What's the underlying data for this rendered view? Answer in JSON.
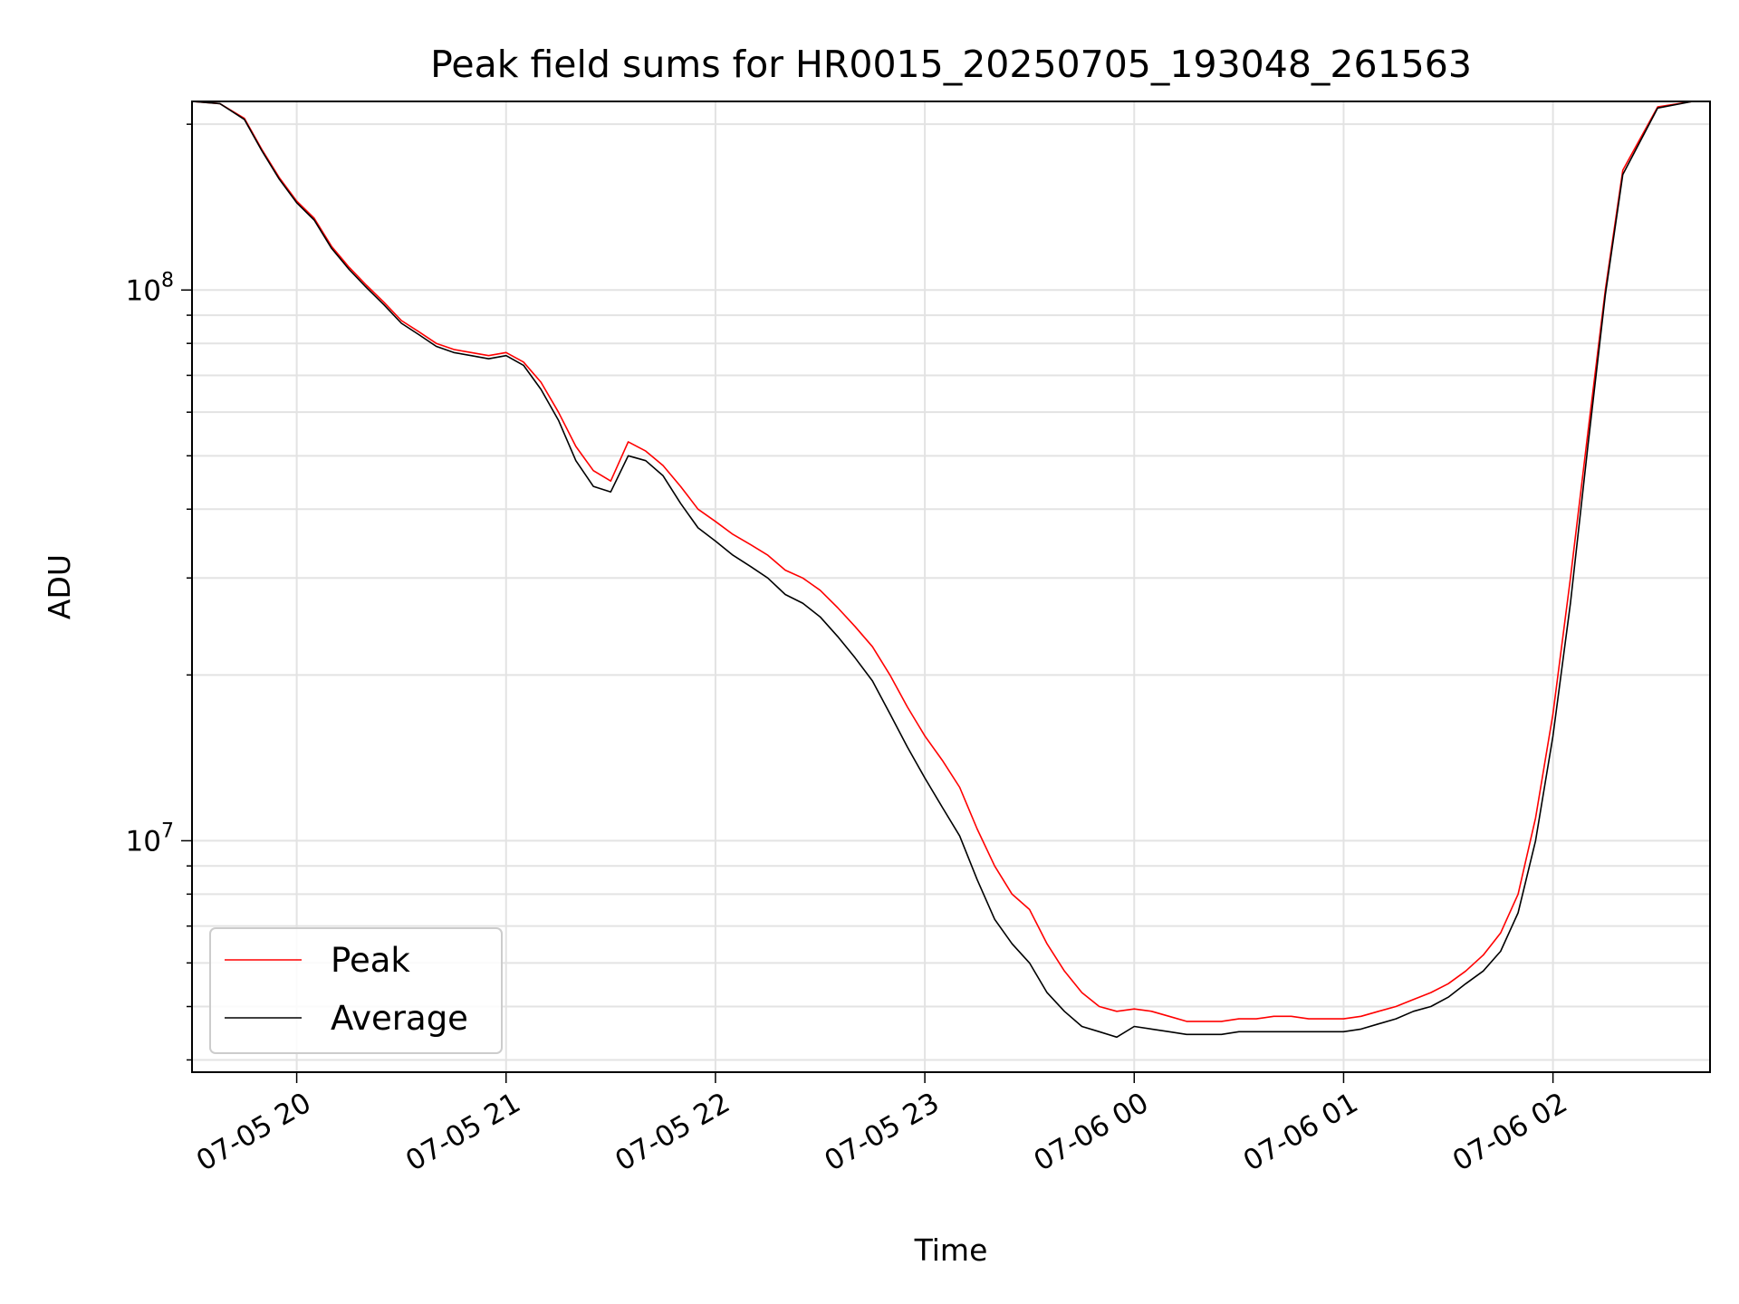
{
  "chart_data": {
    "type": "line",
    "title": "Peak field sums for HR0015_20250705_193048_261563",
    "xlabel": "Time",
    "ylabel": "ADU",
    "yscale": "log",
    "ylim": [
      3800000,
      220000000
    ],
    "xlim": [
      "2025-07-05 19:30",
      "2025-07-06 02:45"
    ],
    "grid": true,
    "legend_position": "lower-left",
    "x_tick_labels": [
      "07-05 20",
      "07-05 21",
      "07-05 22",
      "07-05 23",
      "07-06 00",
      "07-06 01",
      "07-06 02"
    ],
    "x_ticks": [
      "2025-07-05 20:00",
      "2025-07-05 21:00",
      "2025-07-05 22:00",
      "2025-07-05 23:00",
      "2025-07-06 00:00",
      "2025-07-06 01:00",
      "2025-07-06 02:00"
    ],
    "y_tick_labels": [
      {
        "value": 10000000,
        "base": "10",
        "exp": "7"
      },
      {
        "value": 100000000,
        "base": "10",
        "exp": "8"
      }
    ],
    "series": [
      {
        "name": "Peak",
        "color": "#ff0000",
        "x": [
          "2025-07-05 19:30",
          "2025-07-05 19:38",
          "2025-07-05 19:45",
          "2025-07-05 19:50",
          "2025-07-05 19:55",
          "2025-07-05 20:00",
          "2025-07-05 20:05",
          "2025-07-05 20:10",
          "2025-07-05 20:15",
          "2025-07-05 20:20",
          "2025-07-05 20:25",
          "2025-07-05 20:30",
          "2025-07-05 20:35",
          "2025-07-05 20:40",
          "2025-07-05 20:45",
          "2025-07-05 20:50",
          "2025-07-05 20:55",
          "2025-07-05 21:00",
          "2025-07-05 21:05",
          "2025-07-05 21:10",
          "2025-07-05 21:15",
          "2025-07-05 21:20",
          "2025-07-05 21:25",
          "2025-07-05 21:30",
          "2025-07-05 21:35",
          "2025-07-05 21:40",
          "2025-07-05 21:45",
          "2025-07-05 21:50",
          "2025-07-05 21:55",
          "2025-07-05 22:00",
          "2025-07-05 22:05",
          "2025-07-05 22:10",
          "2025-07-05 22:15",
          "2025-07-05 22:20",
          "2025-07-05 22:25",
          "2025-07-05 22:30",
          "2025-07-05 22:35",
          "2025-07-05 22:40",
          "2025-07-05 22:45",
          "2025-07-05 22:50",
          "2025-07-05 22:55",
          "2025-07-05 23:00",
          "2025-07-05 23:05",
          "2025-07-05 23:10",
          "2025-07-05 23:15",
          "2025-07-05 23:20",
          "2025-07-05 23:25",
          "2025-07-05 23:30",
          "2025-07-05 23:35",
          "2025-07-05 23:40",
          "2025-07-05 23:45",
          "2025-07-05 23:50",
          "2025-07-05 23:55",
          "2025-07-06 00:00",
          "2025-07-06 00:05",
          "2025-07-06 00:10",
          "2025-07-06 00:15",
          "2025-07-06 00:20",
          "2025-07-06 00:25",
          "2025-07-06 00:30",
          "2025-07-06 00:35",
          "2025-07-06 00:40",
          "2025-07-06 00:45",
          "2025-07-06 00:50",
          "2025-07-06 00:55",
          "2025-07-06 01:00",
          "2025-07-06 01:05",
          "2025-07-06 01:10",
          "2025-07-06 01:15",
          "2025-07-06 01:20",
          "2025-07-06 01:25",
          "2025-07-06 01:30",
          "2025-07-06 01:35",
          "2025-07-06 01:40",
          "2025-07-06 01:45",
          "2025-07-06 01:50",
          "2025-07-06 01:55",
          "2025-07-06 02:00",
          "2025-07-06 02:05",
          "2025-07-06 02:10",
          "2025-07-06 02:15",
          "2025-07-06 02:20",
          "2025-07-06 02:30",
          "2025-07-06 02:40",
          "2025-07-06 02:45"
        ],
        "values": [
          220000000,
          218000000,
          205000000,
          180000000,
          160000000,
          145000000,
          135000000,
          120000000,
          110000000,
          102000000,
          95000000,
          88000000,
          84000000,
          80000000,
          78000000,
          77000000,
          76000000,
          77000000,
          74000000,
          68000000,
          60000000,
          52000000,
          47000000,
          45000000,
          53000000,
          51000000,
          48000000,
          44000000,
          40000000,
          38000000,
          36000000,
          34500000,
          33000000,
          31000000,
          30000000,
          28500000,
          26500000,
          24500000,
          22500000,
          20000000,
          17500000,
          15500000,
          14000000,
          12500000,
          10500000,
          9000000,
          8000000,
          7500000,
          6500000,
          5800000,
          5300000,
          5000000,
          4900000,
          4950000,
          4900000,
          4800000,
          4700000,
          4700000,
          4700000,
          4750000,
          4750000,
          4800000,
          4800000,
          4750000,
          4750000,
          4750000,
          4800000,
          4900000,
          5000000,
          5150000,
          5300000,
          5500000,
          5800000,
          6200000,
          6800000,
          8000000,
          11000000,
          17000000,
          30000000,
          55000000,
          100000000,
          165000000,
          215000000,
          220000000,
          220000000
        ]
      },
      {
        "name": "Average",
        "color": "#000000",
        "x": [
          "2025-07-05 19:30",
          "2025-07-05 19:38",
          "2025-07-05 19:45",
          "2025-07-05 19:50",
          "2025-07-05 19:55",
          "2025-07-05 20:00",
          "2025-07-05 20:05",
          "2025-07-05 20:10",
          "2025-07-05 20:15",
          "2025-07-05 20:20",
          "2025-07-05 20:25",
          "2025-07-05 20:30",
          "2025-07-05 20:35",
          "2025-07-05 20:40",
          "2025-07-05 20:45",
          "2025-07-05 20:50",
          "2025-07-05 20:55",
          "2025-07-05 21:00",
          "2025-07-05 21:05",
          "2025-07-05 21:10",
          "2025-07-05 21:15",
          "2025-07-05 21:20",
          "2025-07-05 21:25",
          "2025-07-05 21:30",
          "2025-07-05 21:35",
          "2025-07-05 21:40",
          "2025-07-05 21:45",
          "2025-07-05 21:50",
          "2025-07-05 21:55",
          "2025-07-05 22:00",
          "2025-07-05 22:05",
          "2025-07-05 22:10",
          "2025-07-05 22:15",
          "2025-07-05 22:20",
          "2025-07-05 22:25",
          "2025-07-05 22:30",
          "2025-07-05 22:35",
          "2025-07-05 22:40",
          "2025-07-05 22:45",
          "2025-07-05 22:50",
          "2025-07-05 22:55",
          "2025-07-05 23:00",
          "2025-07-05 23:05",
          "2025-07-05 23:10",
          "2025-07-05 23:15",
          "2025-07-05 23:20",
          "2025-07-05 23:25",
          "2025-07-05 23:30",
          "2025-07-05 23:35",
          "2025-07-05 23:40",
          "2025-07-05 23:45",
          "2025-07-05 23:50",
          "2025-07-05 23:55",
          "2025-07-06 00:00",
          "2025-07-06 00:05",
          "2025-07-06 00:10",
          "2025-07-06 00:15",
          "2025-07-06 00:20",
          "2025-07-06 00:25",
          "2025-07-06 00:30",
          "2025-07-06 00:35",
          "2025-07-06 00:40",
          "2025-07-06 00:45",
          "2025-07-06 00:50",
          "2025-07-06 00:55",
          "2025-07-06 01:00",
          "2025-07-06 01:05",
          "2025-07-06 01:10",
          "2025-07-06 01:15",
          "2025-07-06 01:20",
          "2025-07-06 01:25",
          "2025-07-06 01:30",
          "2025-07-06 01:35",
          "2025-07-06 01:40",
          "2025-07-06 01:45",
          "2025-07-06 01:50",
          "2025-07-06 01:55",
          "2025-07-06 02:00",
          "2025-07-06 02:05",
          "2025-07-06 02:10",
          "2025-07-06 02:15",
          "2025-07-06 02:20",
          "2025-07-06 02:30",
          "2025-07-06 02:40",
          "2025-07-06 02:45"
        ],
        "values": [
          220000000,
          218000000,
          204000000,
          179000000,
          159000000,
          144000000,
          134000000,
          119000000,
          109000000,
          101000000,
          94000000,
          87000000,
          83000000,
          79000000,
          77000000,
          76000000,
          75000000,
          76000000,
          73000000,
          66000000,
          58000000,
          49000000,
          44000000,
          43000000,
          50000000,
          49000000,
          46000000,
          41000000,
          37000000,
          35000000,
          33000000,
          31500000,
          30000000,
          28000000,
          27000000,
          25500000,
          23500000,
          21500000,
          19500000,
          17000000,
          14800000,
          13000000,
          11500000,
          10200000,
          8500000,
          7200000,
          6500000,
          6000000,
          5300000,
          4900000,
          4600000,
          4500000,
          4400000,
          4600000,
          4550000,
          4500000,
          4450000,
          4450000,
          4450000,
          4500000,
          4500000,
          4500000,
          4500000,
          4500000,
          4500000,
          4500000,
          4550000,
          4650000,
          4750000,
          4900000,
          5000000,
          5200000,
          5500000,
          5800000,
          6300000,
          7400000,
          10000000,
          15500000,
          27000000,
          52000000,
          98000000,
          162000000,
          214000000,
          220000000,
          220000000
        ]
      }
    ]
  }
}
